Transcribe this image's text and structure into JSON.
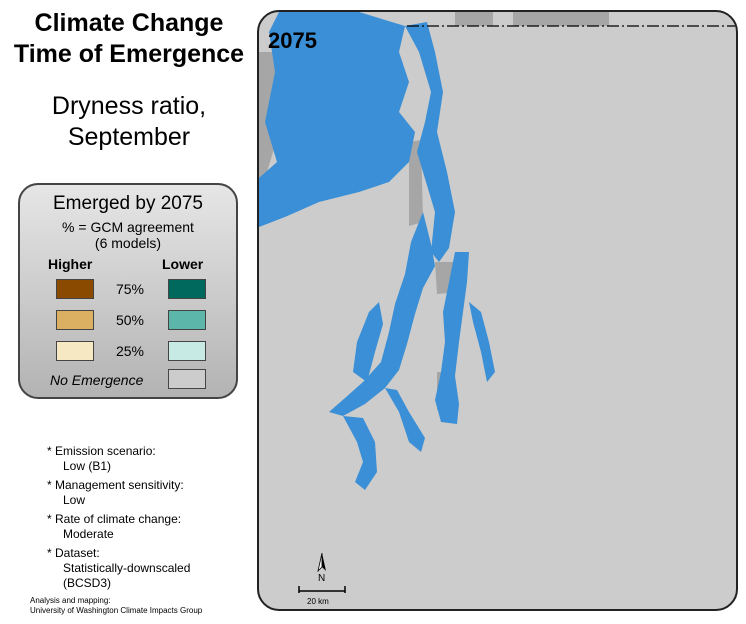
{
  "title": {
    "line1": "Climate Change",
    "line2": "Time of Emergence"
  },
  "subtitle": {
    "line1": "Dryness ratio,",
    "line2": "September"
  },
  "map": {
    "year_label": "2075",
    "scale_label": "20 km",
    "north_label": "N"
  },
  "legend": {
    "title": "Emerged by 2075",
    "subtitle_line1": "% = GCM agreement",
    "subtitle_line2": "(6 models)",
    "higher_label": "Higher",
    "lower_label": "Lower",
    "rows": [
      {
        "pct": "75%",
        "higher_color": "#8a4a00",
        "lower_color": "#00695e"
      },
      {
        "pct": "50%",
        "higher_color": "#dbb062",
        "lower_color": "#5cb6a9"
      },
      {
        "pct": "25%",
        "higher_color": "#f6e8c3",
        "lower_color": "#c7eae5"
      }
    ],
    "no_emergence_label": "No Emergence",
    "no_emergence_color": "#cccccc"
  },
  "notes": [
    {
      "label": "* Emission scenario:",
      "value": "Low (B1)"
    },
    {
      "label": "* Management sensitivity:",
      "value": "Low"
    },
    {
      "label": "* Rate of climate change:",
      "value": "Moderate"
    },
    {
      "label": "* Dataset:",
      "value_lines": [
        "Statistically-downscaled",
        "(BCSD3)"
      ]
    }
  ],
  "credit": {
    "line1": "Analysis and mapping:",
    "line2": "University of Washington Climate Impacts Group"
  },
  "colors": {
    "water": "#3a8fd6",
    "land": "#cccccc",
    "dark_land": "#a6a6a6"
  }
}
